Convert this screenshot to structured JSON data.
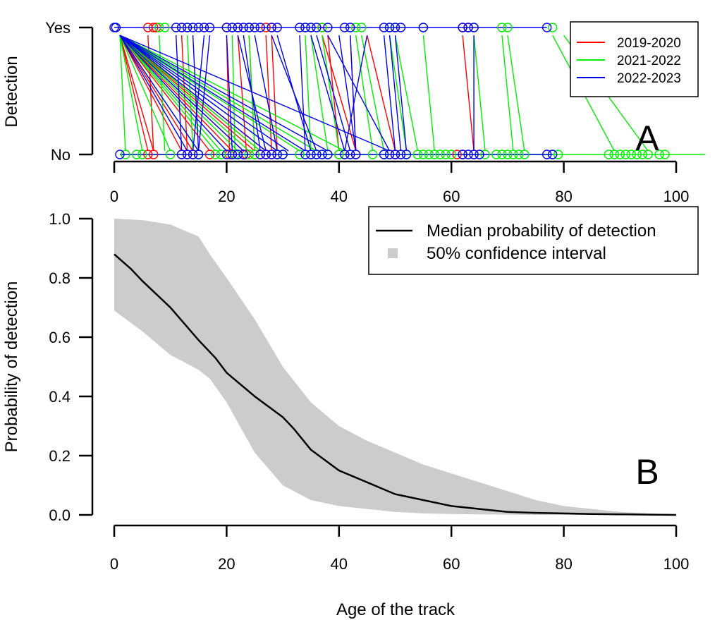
{
  "figure": {
    "panel_a_label": "A",
    "panel_b_label": "B",
    "xlabel": "Age of the track"
  },
  "chart_data": [
    {
      "type": "line",
      "panel": "A",
      "title": "",
      "ylabel": "Detection",
      "xlim": [
        0,
        100
      ],
      "x_ticks": [
        0,
        20,
        40,
        60,
        80,
        100
      ],
      "y_tick_labels": [
        "No",
        "Yes"
      ],
      "legend": {
        "position": "top-right"
      },
      "series": [
        {
          "name": "2019-2020",
          "color": "#ff0000",
          "yes_ages": [
            6,
            7,
            7.5,
            12,
            20,
            22,
            24,
            27,
            28,
            37,
            62,
            63
          ],
          "segments": [
            [
              1,
              30,
              6,
              0
            ],
            [
              1,
              30,
              7,
              0
            ],
            [
              1,
              30,
              12,
              0
            ],
            [
              1,
              30,
              14,
              0
            ],
            [
              1,
              30,
              17,
              0
            ],
            [
              1,
              30,
              21,
              0
            ],
            [
              1,
              30,
              23,
              0
            ],
            [
              1,
              30,
              25,
              0
            ],
            [
              1,
              30,
              26,
              0
            ],
            [
              1,
              30,
              27,
              0
            ],
            [
              6,
              30,
              7,
              0
            ],
            [
              12,
              30,
              13,
              0
            ],
            [
              20,
              30,
              20.5,
              0
            ],
            [
              22,
              30,
              23.5,
              0
            ],
            [
              24,
              30,
              25,
              0
            ],
            [
              27,
              30,
              28,
              0
            ],
            [
              28,
              30,
              29,
              0
            ],
            [
              37,
              30,
              43,
              0
            ],
            [
              38,
              30,
              40,
              0
            ],
            [
              42,
              30,
              43,
              0
            ],
            [
              45,
              30,
              50,
              0
            ],
            [
              62,
              30,
              64,
              0
            ]
          ],
          "no_ages": [
            6,
            7,
            12,
            13,
            14,
            17,
            20.5,
            21,
            23,
            23.5,
            25,
            26,
            27,
            28,
            29,
            40,
            43,
            50,
            61,
            62,
            64
          ]
        },
        {
          "name": "2021-2022",
          "color": "#00ee00",
          "yes_ages": [
            8,
            9,
            13,
            21,
            24,
            34,
            35,
            37,
            43,
            44,
            49,
            50,
            55,
            64,
            69,
            70,
            78
          ],
          "segments": [
            [
              1,
              30,
              2,
              0
            ],
            [
              1,
              30,
              5,
              0
            ],
            [
              1,
              30,
              10,
              0
            ],
            [
              1,
              30,
              15,
              0
            ],
            [
              1,
              30,
              18,
              0
            ],
            [
              1,
              30,
              19,
              0
            ],
            [
              1,
              30,
              22,
              0
            ],
            [
              1,
              30,
              24,
              0
            ],
            [
              1,
              30,
              26,
              0
            ],
            [
              1,
              30,
              29,
              0
            ],
            [
              1,
              30,
              33,
              0
            ],
            [
              1,
              30,
              36,
              0
            ],
            [
              1,
              30,
              41,
              0
            ],
            [
              8,
              30,
              9,
              0
            ],
            [
              13,
              30,
              14,
              0
            ],
            [
              21,
              30,
              21.5,
              0
            ],
            [
              24,
              30,
              25,
              0
            ],
            [
              34,
              30,
              35,
              0
            ],
            [
              35,
              30,
              38,
              0
            ],
            [
              37,
              30,
              40,
              0
            ],
            [
              43,
              30,
              46,
              0
            ],
            [
              44,
              30,
              48,
              0
            ],
            [
              49,
              30,
              52,
              0
            ],
            [
              50,
              30,
              54,
              0
            ],
            [
              55,
              30,
              57,
              0
            ],
            [
              64,
              30,
              66,
              0
            ],
            [
              69,
              30,
              71,
              0
            ],
            [
              70,
              30,
              73,
              0
            ],
            [
              78,
              30,
              89,
              0
            ],
            [
              80,
              30,
              95,
              0
            ]
          ],
          "no_ages": [
            2,
            4,
            5,
            10,
            15,
            18,
            19,
            21.5,
            22,
            24,
            25,
            29,
            30,
            33,
            35,
            36,
            38,
            40,
            41,
            46,
            48,
            52,
            54,
            55,
            56,
            57,
            58,
            59,
            60,
            66,
            68,
            69,
            70,
            71,
            72,
            73,
            78,
            79,
            88,
            89,
            90,
            91,
            92,
            93,
            94,
            95,
            97,
            98
          ]
        },
        {
          "name": "2022-2023",
          "color": "#0000ee",
          "yes_ages": [
            0,
            0.3,
            11,
            12,
            13,
            14,
            15,
            16,
            17,
            20,
            21,
            22,
            23,
            24,
            25,
            26,
            28,
            29,
            33,
            34,
            35,
            36,
            38,
            41,
            42,
            48,
            49,
            50,
            51,
            55,
            62,
            63,
            64,
            77
          ],
          "segments": [
            [
              0,
              30,
              77,
              30
            ],
            [
              1,
              30,
              13,
              0
            ],
            [
              1,
              30,
              15,
              0
            ],
            [
              1,
              30,
              20,
              0
            ],
            [
              1,
              30,
              23,
              0
            ],
            [
              1,
              30,
              27,
              0
            ],
            [
              1,
              30,
              29,
              0
            ],
            [
              1,
              30,
              31,
              0
            ],
            [
              1,
              30,
              34,
              0
            ],
            [
              1,
              30,
              38,
              0
            ],
            [
              1,
              30,
              49,
              0
            ],
            [
              11,
              30,
              12,
              0
            ],
            [
              14,
              30,
              15,
              0
            ],
            [
              16,
              30,
              14,
              0
            ],
            [
              17,
              30,
              15,
              0
            ],
            [
              20,
              30,
              21,
              0
            ],
            [
              22,
              30,
              27,
              0
            ],
            [
              23,
              30,
              26,
              0
            ],
            [
              25,
              30,
              29,
              0
            ],
            [
              28,
              30,
              36,
              0
            ],
            [
              29,
              30,
              35,
              0
            ],
            [
              33,
              30,
              34,
              0
            ],
            [
              35,
              30,
              41,
              0
            ],
            [
              36,
              30,
              42,
              0
            ],
            [
              38,
              30,
              49,
              0
            ],
            [
              42,
              30,
              43,
              0
            ],
            [
              48,
              30,
              50,
              0
            ],
            [
              49,
              30,
              51,
              0
            ],
            [
              50,
              30,
              52,
              0
            ],
            [
              64,
              30,
              64,
              0
            ],
            [
              45,
              30,
              41,
              0
            ],
            [
              40,
              30,
              43,
              0
            ]
          ],
          "no_ages": [
            1,
            12,
            13,
            14,
            15,
            20,
            21,
            22,
            23,
            26,
            27,
            28,
            29,
            30,
            34,
            35,
            36,
            37,
            38,
            41,
            42,
            43,
            48,
            49,
            50,
            51,
            52,
            62,
            63,
            64,
            65,
            77,
            78
          ]
        }
      ]
    },
    {
      "type": "area",
      "panel": "B",
      "title": "",
      "xlabel": "Age of the track",
      "ylabel": "Probability of detection",
      "xlim": [
        0,
        100
      ],
      "ylim": [
        0,
        1
      ],
      "x_ticks": [
        0,
        20,
        40,
        60,
        80,
        100
      ],
      "y_ticks": [
        "0.0",
        "0.2",
        "0.4",
        "0.6",
        "0.8",
        "1.0"
      ],
      "legend": {
        "position": "top-right"
      },
      "series": [
        {
          "name": "Median probability of detection",
          "color": "#000000",
          "x": [
            0,
            3,
            5,
            10,
            15,
            18,
            20,
            25,
            30,
            32,
            35,
            40,
            45,
            50,
            55,
            60,
            65,
            70,
            75,
            80,
            85,
            90,
            95,
            100
          ],
          "y": [
            0.88,
            0.83,
            0.79,
            0.7,
            0.59,
            0.53,
            0.48,
            0.4,
            0.33,
            0.29,
            0.22,
            0.15,
            0.11,
            0.07,
            0.05,
            0.03,
            0.02,
            0.01,
            0.007,
            0.005,
            0.003,
            0.002,
            0.001,
            0.0
          ]
        },
        {
          "name": "50% confidence interval",
          "color": "#cccccc",
          "x": [
            0,
            5,
            10,
            15,
            17,
            20,
            25,
            30,
            35,
            40,
            45,
            50,
            55,
            60,
            65,
            70,
            75,
            80,
            85,
            90,
            95,
            100
          ],
          "upper": [
            1.0,
            0.995,
            0.98,
            0.94,
            0.88,
            0.8,
            0.66,
            0.5,
            0.38,
            0.3,
            0.25,
            0.21,
            0.17,
            0.14,
            0.11,
            0.08,
            0.05,
            0.03,
            0.02,
            0.01,
            0.005,
            0.002
          ],
          "lower": [
            0.69,
            0.62,
            0.54,
            0.49,
            0.46,
            0.38,
            0.21,
            0.1,
            0.05,
            0.03,
            0.02,
            0.01,
            0.005,
            0.003,
            0.002,
            0.001,
            0.0,
            0.0,
            0.0,
            0.0,
            0.0,
            0.0
          ]
        }
      ]
    }
  ]
}
